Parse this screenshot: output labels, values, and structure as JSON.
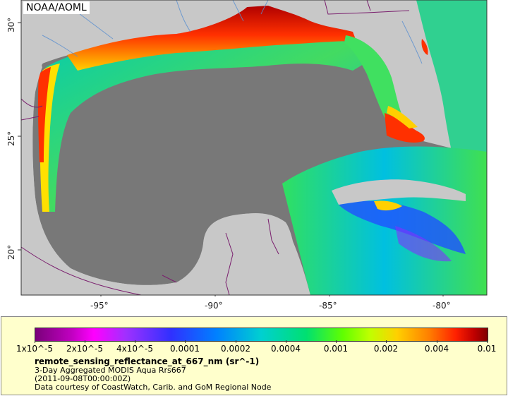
{
  "map": {
    "credit": "NOAA/AOML",
    "lon_labels": [
      "-95°",
      "-90°",
      "-85°",
      "-80°"
    ],
    "lat_labels": [
      "30°",
      "25°",
      "20°"
    ],
    "colors": {
      "land": "#c8c8c8",
      "no_data": "#787878",
      "border": "#7a1f6e",
      "river": "#5a8fd0"
    }
  },
  "legend": {
    "tick_labels": [
      "1x10^-5",
      "2x10^-5",
      "4x10^-5",
      "0.0001",
      "0.0002",
      "0.0004",
      "0.001",
      "0.002",
      "0.004",
      "0.01"
    ],
    "variable": "remote_sensing_reflectance_at_667_nm (sr^-1)",
    "line1": "3-Day Aggregated MODIS Aqua Rrs667",
    "line2": "(2011-09-08T00:00:00Z)",
    "line3": "Data courtesy of CoastWatch, Carib. and GoM Regional Node"
  }
}
